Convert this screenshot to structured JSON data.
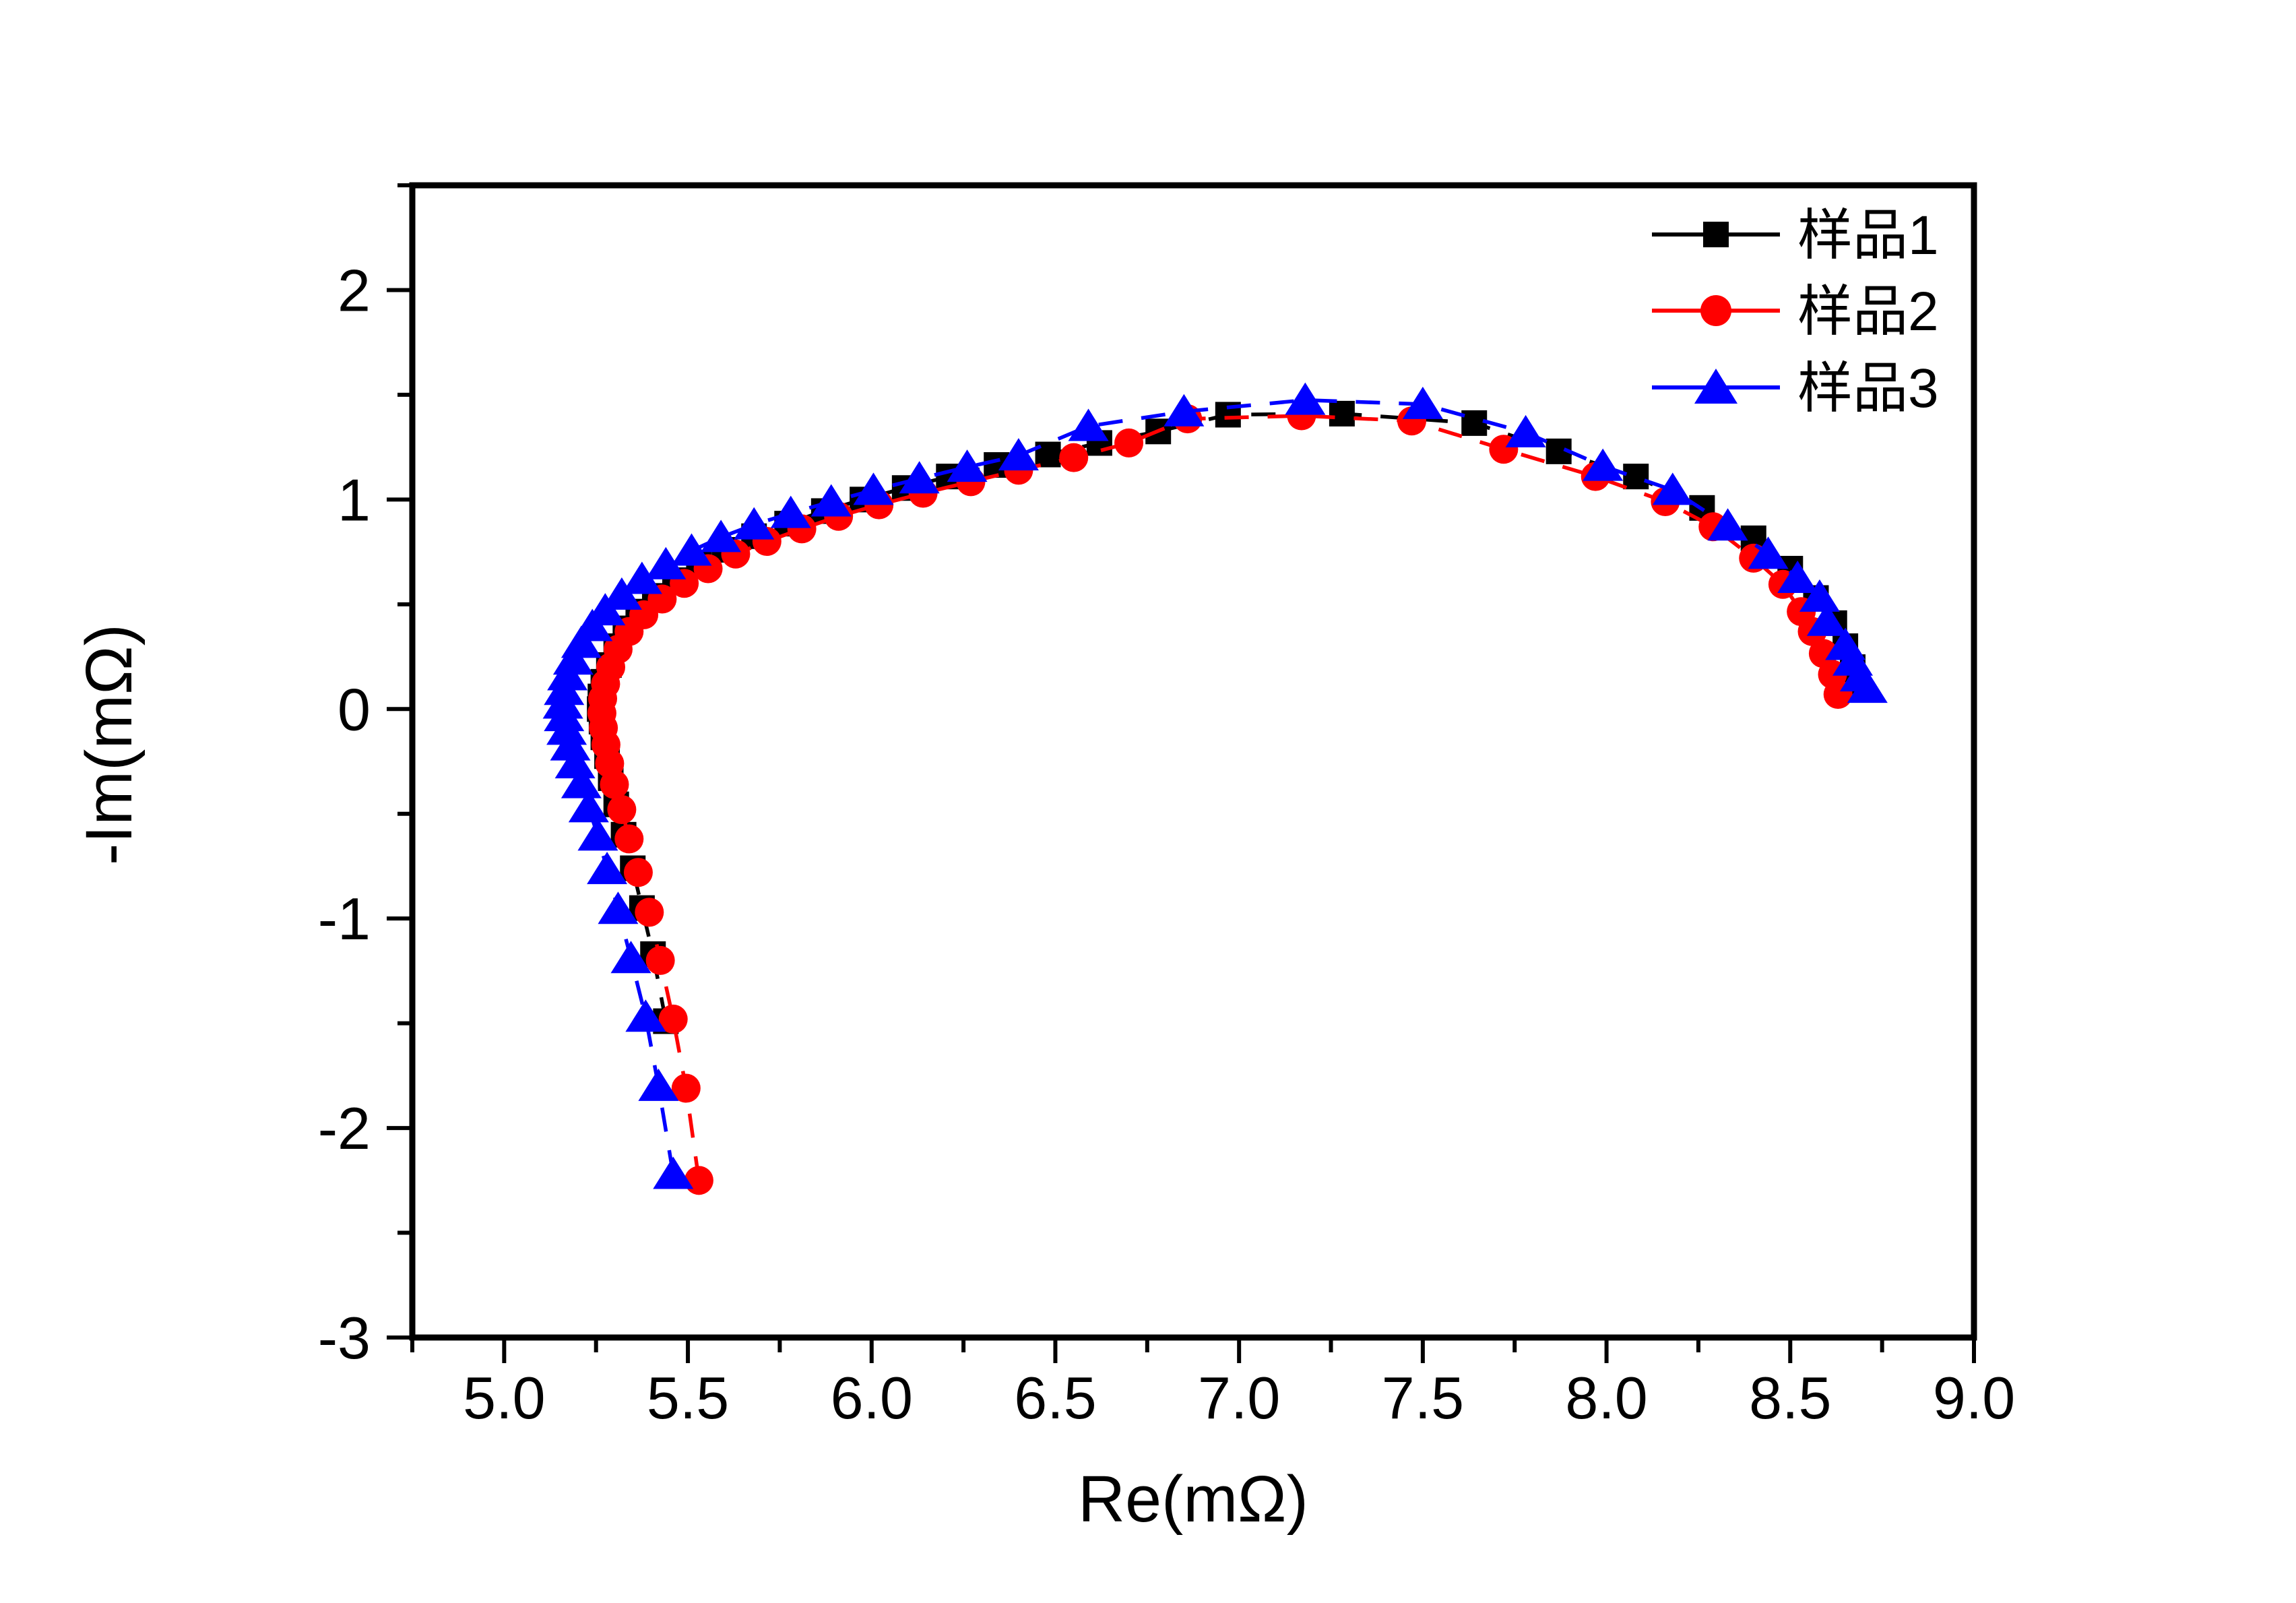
{
  "figure": {
    "background": "#ffffff"
  },
  "chart_data": {
    "type": "line",
    "title": "",
    "xlabel": "Re(mΩ)",
    "ylabel": "-Im(mΩ)",
    "xlim": [
      4.75,
      9.0
    ],
    "ylim": [
      -3.0,
      2.5
    ],
    "grid": false,
    "frame_color": "#000000",
    "x_ticks": [
      {
        "v": 5.0,
        "label": "5.0"
      },
      {
        "v": 5.5,
        "label": "5.5"
      },
      {
        "v": 6.0,
        "label": "6.0"
      },
      {
        "v": 6.5,
        "label": "6.5"
      },
      {
        "v": 7.0,
        "label": "7.0"
      },
      {
        "v": 7.5,
        "label": "7.5"
      },
      {
        "v": 8.0,
        "label": "8.0"
      },
      {
        "v": 8.5,
        "label": "8.5"
      },
      {
        "v": 9.0,
        "label": "9.0"
      }
    ],
    "x_minor_ticks": [
      4.75,
      5.25,
      5.75,
      6.25,
      6.75,
      7.25,
      7.75,
      8.25,
      8.75
    ],
    "y_ticks": [
      {
        "v": 2,
        "label": "2"
      },
      {
        "v": 1,
        "label": "1"
      },
      {
        "v": 0,
        "label": "0"
      },
      {
        "v": -1,
        "label": "-1"
      },
      {
        "v": -2,
        "label": "-2"
      },
      {
        "v": -3,
        "label": "-3"
      }
    ],
    "y_minor_ticks": [
      2.5,
      1.5,
      0.5,
      -0.5,
      -1.5,
      -2.5
    ],
    "legend": {
      "position": "top-right"
    },
    "series": [
      {
        "name": "样品1",
        "color": "#000000",
        "marker": "square",
        "line_style": "dashed",
        "points": [
          [
            5.44,
            -1.49
          ],
          [
            5.405,
            -1.17
          ],
          [
            5.375,
            -0.95
          ],
          [
            5.35,
            -0.76
          ],
          [
            5.325,
            -0.6
          ],
          [
            5.305,
            -0.455
          ],
          [
            5.29,
            -0.33
          ],
          [
            5.28,
            -0.225
          ],
          [
            5.27,
            -0.135
          ],
          [
            5.265,
            -0.06
          ],
          [
            5.26,
            0.0
          ],
          [
            5.262,
            0.06
          ],
          [
            5.27,
            0.13
          ],
          [
            5.285,
            0.21
          ],
          [
            5.305,
            0.3
          ],
          [
            5.33,
            0.385
          ],
          [
            5.365,
            0.465
          ],
          [
            5.41,
            0.54
          ],
          [
            5.465,
            0.615
          ],
          [
            5.53,
            0.69
          ],
          [
            5.6,
            0.76
          ],
          [
            5.68,
            0.825
          ],
          [
            5.77,
            0.885
          ],
          [
            5.87,
            0.945
          ],
          [
            5.975,
            1.0
          ],
          [
            6.09,
            1.055
          ],
          [
            6.21,
            1.11
          ],
          [
            6.34,
            1.165
          ],
          [
            6.48,
            1.215
          ],
          [
            6.62,
            1.27
          ],
          [
            6.78,
            1.325
          ],
          [
            6.97,
            1.405
          ],
          [
            7.28,
            1.41
          ],
          [
            7.64,
            1.365
          ],
          [
            7.87,
            1.23
          ],
          [
            8.08,
            1.11
          ],
          [
            8.26,
            0.96
          ],
          [
            8.4,
            0.815
          ],
          [
            8.5,
            0.67
          ],
          [
            8.57,
            0.53
          ],
          [
            8.62,
            0.41
          ],
          [
            8.65,
            0.3
          ],
          [
            8.67,
            0.2
          ],
          [
            8.68,
            0.11
          ]
        ]
      },
      {
        "name": "样品2",
        "color": "#ff0000",
        "marker": "circle",
        "line_style": "dashed",
        "points": [
          [
            5.53,
            -2.25
          ],
          [
            5.495,
            -1.81
          ],
          [
            5.46,
            -1.48
          ],
          [
            5.425,
            -1.2
          ],
          [
            5.395,
            -0.97
          ],
          [
            5.365,
            -0.78
          ],
          [
            5.34,
            -0.62
          ],
          [
            5.32,
            -0.48
          ],
          [
            5.3,
            -0.36
          ],
          [
            5.287,
            -0.26
          ],
          [
            5.277,
            -0.17
          ],
          [
            5.27,
            -0.09
          ],
          [
            5.266,
            -0.02
          ],
          [
            5.268,
            0.05
          ],
          [
            5.276,
            0.12
          ],
          [
            5.29,
            0.2
          ],
          [
            5.31,
            0.285
          ],
          [
            5.34,
            0.37
          ],
          [
            5.38,
            0.45
          ],
          [
            5.43,
            0.525
          ],
          [
            5.49,
            0.6
          ],
          [
            5.555,
            0.67
          ],
          [
            5.63,
            0.74
          ],
          [
            5.715,
            0.8
          ],
          [
            5.81,
            0.86
          ],
          [
            5.91,
            0.92
          ],
          [
            6.02,
            0.975
          ],
          [
            6.14,
            1.03
          ],
          [
            6.27,
            1.085
          ],
          [
            6.4,
            1.14
          ],
          [
            6.55,
            1.2
          ],
          [
            6.7,
            1.27
          ],
          [
            6.86,
            1.385
          ],
          [
            7.17,
            1.4
          ],
          [
            7.47,
            1.375
          ],
          [
            7.72,
            1.24
          ],
          [
            7.97,
            1.11
          ],
          [
            8.16,
            0.99
          ],
          [
            8.29,
            0.87
          ],
          [
            8.4,
            0.72
          ],
          [
            8.48,
            0.595
          ],
          [
            8.53,
            0.465
          ],
          [
            8.56,
            0.37
          ],
          [
            8.59,
            0.265
          ],
          [
            8.615,
            0.165
          ],
          [
            8.63,
            0.07
          ]
        ]
      },
      {
        "name": "样品3",
        "color": "#0000ff",
        "marker": "triangle",
        "line_style": "dashed",
        "points": [
          [
            5.46,
            -2.22
          ],
          [
            5.42,
            -1.8
          ],
          [
            5.385,
            -1.47
          ],
          [
            5.345,
            -1.19
          ],
          [
            5.31,
            -0.955
          ],
          [
            5.28,
            -0.765
          ],
          [
            5.255,
            -0.605
          ],
          [
            5.23,
            -0.47
          ],
          [
            5.21,
            -0.355
          ],
          [
            5.193,
            -0.26
          ],
          [
            5.18,
            -0.175
          ],
          [
            5.17,
            -0.1
          ],
          [
            5.163,
            -0.035
          ],
          [
            5.16,
            0.025
          ],
          [
            5.163,
            0.09
          ],
          [
            5.172,
            0.16
          ],
          [
            5.188,
            0.235
          ],
          [
            5.21,
            0.315
          ],
          [
            5.24,
            0.395
          ],
          [
            5.275,
            0.47
          ],
          [
            5.32,
            0.545
          ],
          [
            5.375,
            0.62
          ],
          [
            5.44,
            0.69
          ],
          [
            5.51,
            0.755
          ],
          [
            5.59,
            0.82
          ],
          [
            5.68,
            0.88
          ],
          [
            5.78,
            0.935
          ],
          [
            5.89,
            0.99
          ],
          [
            6.005,
            1.045
          ],
          [
            6.13,
            1.1
          ],
          [
            6.26,
            1.155
          ],
          [
            6.4,
            1.21
          ],
          [
            6.59,
            1.35
          ],
          [
            6.85,
            1.42
          ],
          [
            7.18,
            1.475
          ],
          [
            7.5,
            1.455
          ],
          [
            7.78,
            1.32
          ],
          [
            7.99,
            1.16
          ],
          [
            8.18,
            1.045
          ],
          [
            8.33,
            0.875
          ],
          [
            8.44,
            0.74
          ],
          [
            8.52,
            0.625
          ],
          [
            8.58,
            0.535
          ],
          [
            8.6,
            0.42
          ],
          [
            8.65,
            0.305
          ],
          [
            8.67,
            0.23
          ],
          [
            8.69,
            0.155
          ],
          [
            8.71,
            0.1
          ]
        ]
      }
    ]
  }
}
